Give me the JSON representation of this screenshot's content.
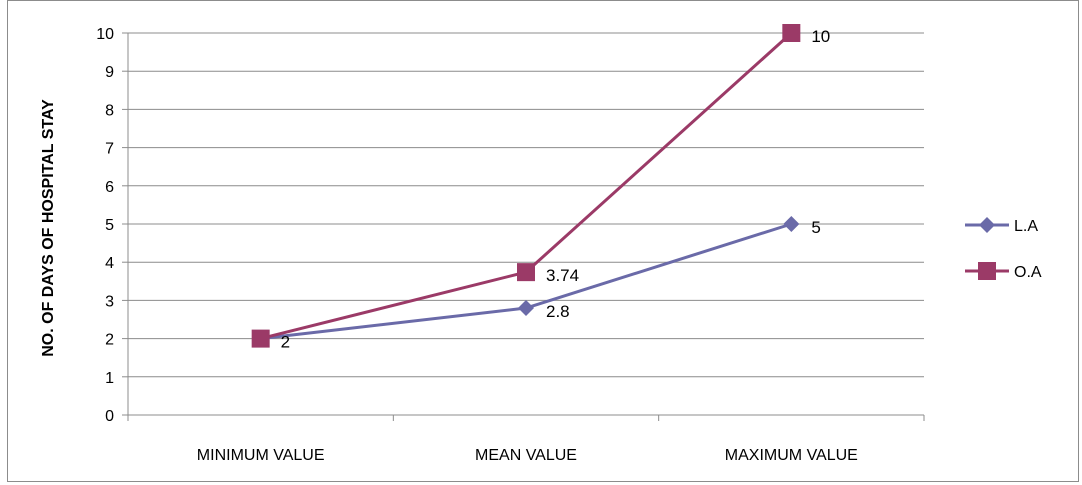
{
  "chart_data": {
    "type": "line",
    "title": "",
    "xlabel": "",
    "ylabel": "NO. OF DAYS OF HOSPITAL STAY",
    "categories": [
      "MINIMUM VALUE",
      "MEAN VALUE",
      "MAXIMUM VALUE"
    ],
    "ylim": [
      0,
      10
    ],
    "yticks": [
      "0",
      "1",
      "2",
      "3",
      "4",
      "5",
      "6",
      "7",
      "8",
      "9",
      "10"
    ],
    "grid": true,
    "legend_position": "right",
    "series": [
      {
        "name": "L.A",
        "values": [
          2,
          2.8,
          5
        ],
        "labels": [
          "",
          "2.8",
          "5"
        ],
        "color": "#6a6aa8",
        "marker": "diamond"
      },
      {
        "name": "O.A",
        "values": [
          2,
          3.74,
          10
        ],
        "labels": [
          "2",
          "3.74",
          "10"
        ],
        "color": "#9b3a67",
        "marker": "square"
      }
    ]
  }
}
